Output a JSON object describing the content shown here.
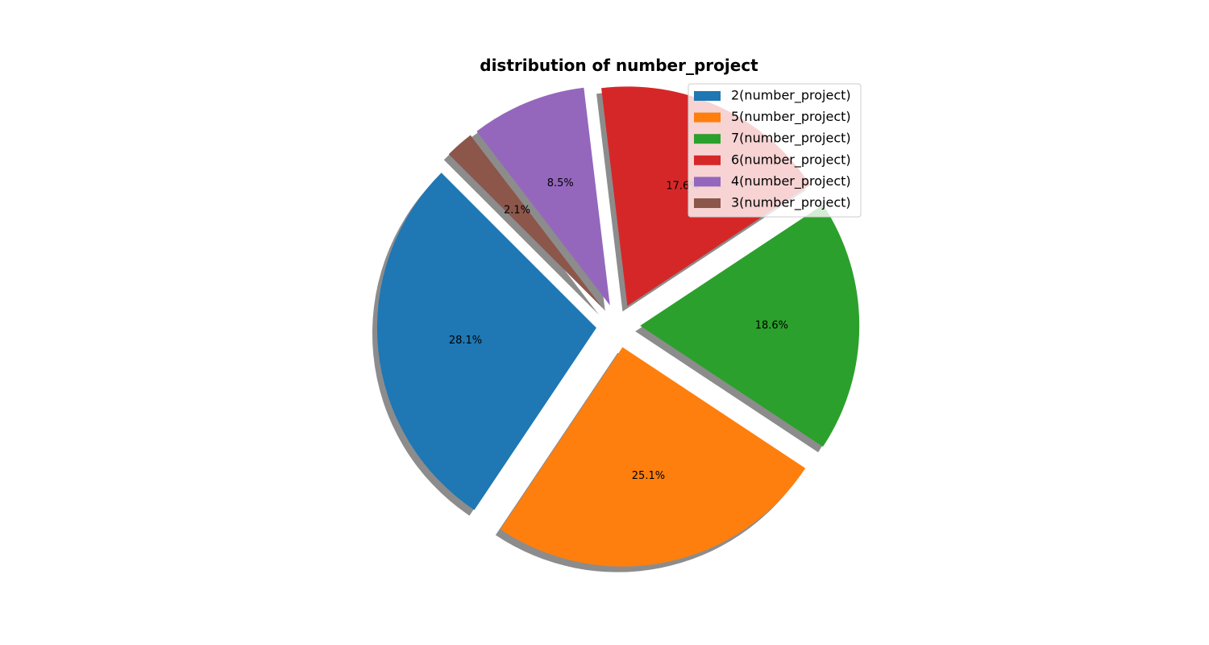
{
  "chart_data": {
    "type": "pie",
    "title": "distribution of number_project",
    "legend_location": "top-right",
    "shadow": true,
    "exploded": true,
    "start_angle_deg": 135,
    "slices": [
      {
        "label": "2(number_project)",
        "value": 28.1,
        "pct_text": "28.1%",
        "color": "#1f77b4"
      },
      {
        "label": "5(number_project)",
        "value": 25.1,
        "pct_text": "25.1%",
        "color": "#ff7f0e"
      },
      {
        "label": "7(number_project)",
        "value": 18.6,
        "pct_text": "18.6%",
        "color": "#2ca02c"
      },
      {
        "label": "6(number_project)",
        "value": 17.6,
        "pct_text": "17.6%",
        "color": "#d62728"
      },
      {
        "label": "4(number_project)",
        "value": 8.5,
        "pct_text": "8.5%",
        "color": "#9467bd"
      },
      {
        "label": "3(number_project)",
        "value": 2.1,
        "pct_text": "2.1%",
        "color": "#8c564b"
      }
    ]
  }
}
